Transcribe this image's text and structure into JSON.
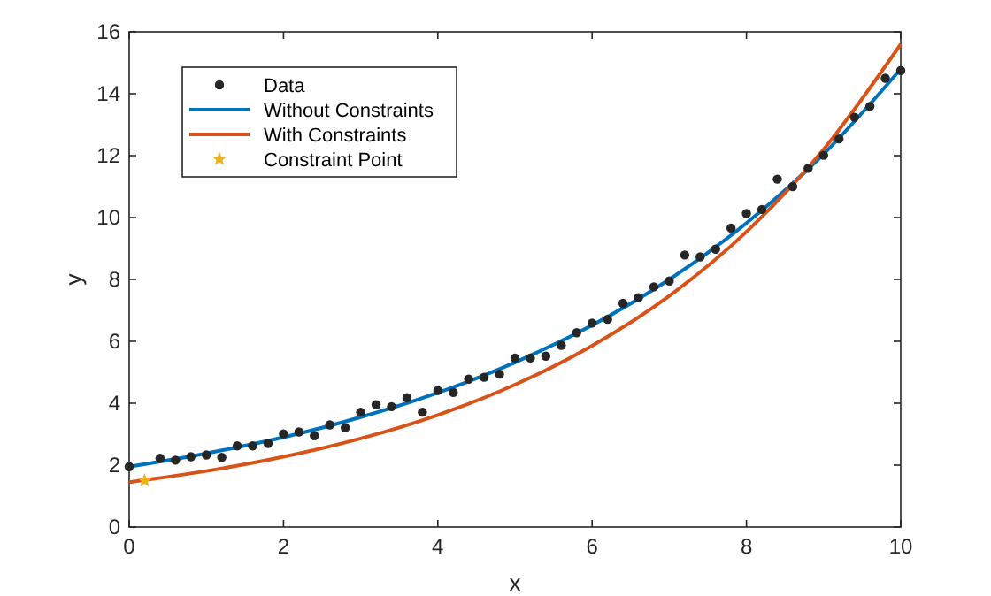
{
  "chart_data": {
    "type": "scatter",
    "xlabel": "x",
    "ylabel": "y",
    "xlim": [
      0,
      10
    ],
    "ylim": [
      0,
      16
    ],
    "xticks": [
      0,
      2,
      4,
      6,
      8,
      10
    ],
    "yticks": [
      0,
      2,
      4,
      6,
      8,
      10,
      12,
      14,
      16
    ],
    "legend": "top left",
    "grid": false,
    "series": [
      {
        "name": "Data",
        "marker": "circle",
        "color": "#262626",
        "x": [
          0,
          0.4,
          0.6,
          0.8,
          1.0,
          1.2,
          1.4,
          1.6,
          1.8,
          2.0,
          2.2,
          2.4,
          2.6,
          2.8,
          3.0,
          3.2,
          3.4,
          3.6,
          3.8,
          4.0,
          4.2,
          4.4,
          4.6,
          4.8,
          5.0,
          5.2,
          5.4,
          5.6,
          5.8,
          6.0,
          6.2,
          6.4,
          6.6,
          6.8,
          7.0,
          7.2,
          7.4,
          7.6,
          7.8,
          8.0,
          8.2,
          8.4,
          8.6,
          8.8,
          9.0,
          9.2,
          9.4,
          9.6,
          9.8,
          10.0
        ],
        "values": [
          1.95,
          2.22,
          2.16,
          2.27,
          2.33,
          2.25,
          2.62,
          2.62,
          2.7,
          3.01,
          3.07,
          2.95,
          3.3,
          3.21,
          3.71,
          3.95,
          3.89,
          4.18,
          3.71,
          4.41,
          4.35,
          4.78,
          4.84,
          4.94,
          5.46,
          5.46,
          5.52,
          5.87,
          6.28,
          6.59,
          6.71,
          7.23,
          7.41,
          7.76,
          7.95,
          8.79,
          8.73,
          8.98,
          9.66,
          10.13,
          10.26,
          11.24,
          11.0,
          11.59,
          12.01,
          12.54,
          13.24,
          13.59,
          14.5,
          14.75
        ]
      },
      {
        "name": "Without Constraints",
        "type": "line",
        "marker": "none",
        "color": "#0072bd",
        "x": [
          0,
          1,
          2,
          3,
          4,
          5,
          6,
          7,
          8,
          9,
          10
        ],
        "values": [
          1.95,
          2.38,
          2.9,
          3.55,
          4.34,
          5.32,
          6.52,
          8.0,
          9.82,
          12.05,
          14.8
        ]
      },
      {
        "name": "With Constraints",
        "type": "line",
        "marker": "none",
        "color": "#d95319",
        "x": [
          0,
          1,
          2,
          3,
          4,
          5,
          6,
          7,
          8,
          9,
          10
        ],
        "values": [
          1.45,
          1.81,
          2.27,
          2.86,
          3.62,
          4.6,
          5.86,
          7.47,
          9.54,
          12.2,
          15.6
        ]
      },
      {
        "name": "Constraint Point",
        "marker": "star",
        "color": "#edb120",
        "x": [
          0.2
        ],
        "values": [
          1.5
        ]
      }
    ]
  }
}
